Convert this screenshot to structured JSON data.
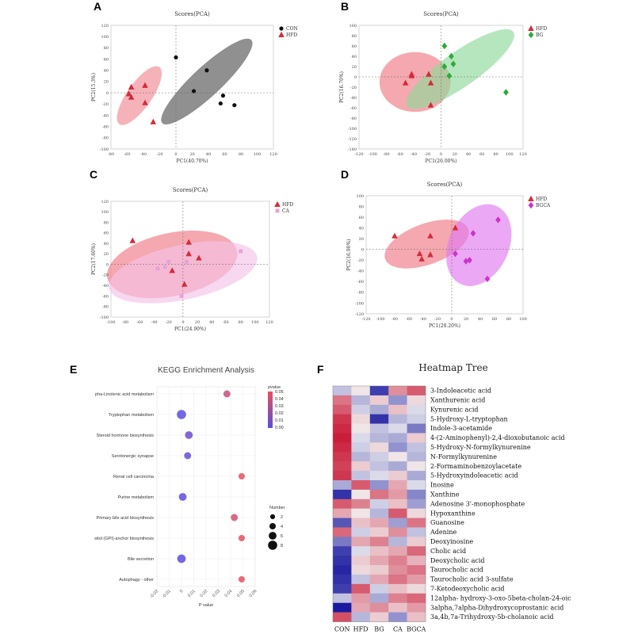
{
  "panels": {
    "A": "A",
    "B": "B",
    "C": "C",
    "D": "D",
    "E": "E",
    "F": "F"
  },
  "chart_data": [
    {
      "id": "A",
      "type": "scatter",
      "title": "Scores(PCA)",
      "xlabel": "PC1(40.70%)",
      "ylabel": "PC2(15.3%)",
      "xlim": [
        -80,
        120
      ],
      "ylim": [
        -100,
        120
      ],
      "xticks": [
        -80,
        -60,
        -40,
        -20,
        0,
        20,
        40,
        60,
        80,
        100,
        120
      ],
      "yticks": [
        -100,
        -80,
        -60,
        -40,
        -20,
        0,
        20,
        40,
        60,
        80,
        100,
        120
      ],
      "legend_position": "top-right",
      "series": [
        {
          "name": "CON",
          "marker": "circle",
          "color": "#111111",
          "ellipse_color": "#555555",
          "points": [
            [
              0,
              63
            ],
            [
              38,
              40
            ],
            [
              22,
              3
            ],
            [
              58,
              -5
            ],
            [
              55,
              -19
            ],
            [
              72,
              -22
            ]
          ],
          "ellipse": {
            "cx": 38,
            "cy": 20,
            "rx": 75,
            "ry": 26,
            "angle_deg": -43
          }
        },
        {
          "name": "HFD",
          "marker": "triangle",
          "color": "#d42b3a",
          "ellipse_color": "#f08a93",
          "points": [
            [
              -55,
              10
            ],
            [
              -38,
              13
            ],
            [
              -58,
              -2
            ],
            [
              -55,
              -8
            ],
            [
              -38,
              -18
            ],
            [
              -28,
              -52
            ]
          ],
          "ellipse": {
            "cx": -45,
            "cy": -5,
            "rx": 43,
            "ry": 22,
            "angle_deg": -55
          }
        }
      ]
    },
    {
      "id": "B",
      "type": "scatter",
      "title": "Scores(PCA)",
      "xlabel": "PC1(26.00%)",
      "ylabel": "PC2(16.70%)",
      "xlim": [
        -120,
        120
      ],
      "ylim": [
        -140,
        100
      ],
      "xticks": [
        -120,
        -100,
        -80,
        -60,
        -40,
        -20,
        0,
        20,
        40,
        60,
        80,
        100,
        120
      ],
      "yticks": [
        -140,
        -120,
        -100,
        -80,
        -60,
        -40,
        -20,
        0,
        20,
        40,
        60,
        80,
        100
      ],
      "legend_position": "top-right",
      "series": [
        {
          "name": "HFD",
          "marker": "triangle",
          "color": "#d42b3a",
          "ellipse_color": "#f07a85",
          "points": [
            [
              -43,
              5
            ],
            [
              -18,
              5
            ],
            [
              -52,
              -12
            ],
            [
              -15,
              -12
            ],
            [
              -43,
              2
            ],
            [
              -15,
              -55
            ]
          ],
          "ellipse": {
            "cx": -38,
            "cy": -10,
            "rx": 52,
            "ry": 58,
            "angle_deg": 0
          }
        },
        {
          "name": "BG",
          "marker": "diamond",
          "color": "#2eaa3c",
          "ellipse_color": "#8fd99a",
          "points": [
            [
              5,
              60
            ],
            [
              15,
              40
            ],
            [
              5,
              20
            ],
            [
              18,
              25
            ],
            [
              12,
              2
            ],
            [
              95,
              -30
            ]
          ],
          "ellipse": {
            "cx": 28,
            "cy": 15,
            "rx": 95,
            "ry": 34,
            "angle_deg": -35
          }
        }
      ]
    },
    {
      "id": "C",
      "type": "scatter",
      "title": "Scores(PCA)",
      "xlabel": "PC1(24.90%)",
      "ylabel": "PC2(17.60%)",
      "xlim": [
        -100,
        120
      ],
      "ylim": [
        -100,
        120
      ],
      "xticks": [
        -100,
        -80,
        -60,
        -40,
        -20,
        0,
        20,
        40,
        60,
        80,
        100,
        120
      ],
      "yticks": [
        -100,
        -80,
        -60,
        -40,
        -20,
        0,
        20,
        40,
        60,
        80,
        100,
        120
      ],
      "legend_position": "top-right",
      "series": [
        {
          "name": "HFD",
          "marker": "triangle",
          "color": "#d42b3a",
          "ellipse_color": "#f07a85",
          "points": [
            [
              -70,
              45
            ],
            [
              8,
              42
            ],
            [
              22,
              12
            ],
            [
              8,
              20
            ],
            [
              -15,
              -12
            ],
            [
              2,
              -38
            ]
          ],
          "ellipse": {
            "cx": -15,
            "cy": 0,
            "rx": 92,
            "ry": 60,
            "angle_deg": -12
          }
        },
        {
          "name": "CA",
          "marker": "square",
          "color": "#e8a0d8",
          "ellipse_color": "#f5c2e8",
          "points": [
            [
              -20,
              5
            ],
            [
              -25,
              -5
            ],
            [
              80,
              25
            ],
            [
              -2,
              -60
            ],
            [
              5,
              5
            ],
            [
              -35,
              -8
            ]
          ],
          "ellipse": {
            "cx": 0,
            "cy": -15,
            "rx": 105,
            "ry": 52,
            "angle_deg": -12
          }
        }
      ]
    },
    {
      "id": "D",
      "type": "scatter",
      "title": "Scores(PCA)",
      "xlabel": "PC1(28.20%)",
      "ylabel": "PC2(16.90%)",
      "xlim": [
        -120,
        100
      ],
      "ylim": [
        -120,
        100
      ],
      "xticks": [
        -120,
        -100,
        -80,
        -60,
        -40,
        -20,
        0,
        20,
        40,
        60,
        80,
        100
      ],
      "yticks": [
        -120,
        -100,
        -80,
        -60,
        -40,
        -20,
        0,
        20,
        40,
        60,
        80,
        100
      ],
      "legend_position": "top-right",
      "series": [
        {
          "name": "HFD",
          "marker": "triangle",
          "color": "#d42b3a",
          "ellipse_color": "#f07a85",
          "points": [
            [
              -80,
              25
            ],
            [
              -30,
              25
            ],
            [
              -45,
              -8
            ],
            [
              -42,
              -18
            ],
            [
              -30,
              -10
            ],
            [
              5,
              40
            ]
          ],
          "ellipse": {
            "cx": -35,
            "cy": 10,
            "rx": 62,
            "ry": 38,
            "angle_deg": -20
          }
        },
        {
          "name": "BGCA",
          "marker": "diamond",
          "color": "#cc33cc",
          "ellipse_color": "#e07af0",
          "points": [
            [
              30,
              30
            ],
            [
              65,
              55
            ],
            [
              5,
              -8
            ],
            [
              25,
              -20
            ],
            [
              20,
              -22
            ],
            [
              50,
              -55
            ]
          ],
          "ellipse": {
            "cx": 38,
            "cy": 8,
            "rx": 42,
            "ry": 80,
            "angle_deg": 25
          }
        }
      ]
    },
    {
      "id": "E",
      "type": "scatter",
      "title": "KEGG Enrichment Analysis",
      "xlabel": "P value",
      "ylabel": "",
      "xlim": [
        -0.02,
        0.06
      ],
      "xticks": [
        -0.02,
        -0.01,
        0,
        0.01,
        0.02,
        0.03,
        0.04,
        0.05,
        0.06
      ],
      "categories": [
        "pha-Linolenic acid metabolism",
        "Tryptophan metabolism",
        "Steroid hormone biosynthesis",
        "Serotonergic synapse",
        "Renal cell carcinoma",
        "Purine metabolism",
        "Primary bile acid biosynthesis",
        "sitol (GPI)-anchor biosynthesis",
        "Bile secretion",
        "Autophagy - other"
      ],
      "values": [
        0.037,
        0.0,
        0.006,
        0.005,
        0.049,
        0.001,
        0.043,
        0.049,
        0.0,
        0.049
      ],
      "number": [
        5,
        8,
        6,
        5,
        4,
        6,
        5,
        4,
        7,
        4
      ],
      "color_legend": {
        "title": "pvalue",
        "ticks": [
          "0.05",
          "0.04",
          "0.03",
          "0.02",
          "0.01",
          "0.00"
        ],
        "low": "#5b4ce0",
        "high": "#e8505b"
      },
      "size_legend": {
        "title": "Number",
        "values": [
          2,
          4,
          6,
          8
        ]
      }
    },
    {
      "id": "F",
      "type": "heatmap",
      "title": "Heatmap Tree",
      "columns": [
        "CON",
        "HFD",
        "BG",
        "CA",
        "BGCA"
      ],
      "rows": [
        "3-Indoleacetic acid",
        "Xanthurenic acid",
        "Kynurenic acid",
        "5-Hydroxy-L-tryptophan",
        "Indole-3-acetamide",
        "4-(2-Aminophenyl)-2,4-dioxobutanoic acid",
        "5-Hydroxy-N-formylkynurenine",
        "N-Formylkynurenine",
        "2-Formaminobenzoylacetate",
        "5-Hydroxyindoleacetic acid",
        "Inosine",
        "Xanthine",
        "Adenosine 3'-monophosphate",
        "Hypoxanthine",
        "Guanosine",
        "Adenine",
        "Deoxyinosine",
        "Cholic acid",
        "Deoxycholic acid",
        "Taurocholic acid",
        "Taurocholic acid 3-sulfate",
        "7-Ketodeoxycholic acid",
        "12alpha- hydroxy-3-oxo-5beta-cholan-24-oic",
        "3alpha,7alpha-Dihydroxycoprostanic acid",
        "3a,4b,7a-Trihydroxy-5b-cholanoic acid"
      ],
      "values": [
        [
          -0.4,
          0.1,
          -1.5,
          0.8,
          1.2
        ],
        [
          1.0,
          -0.5,
          0.3,
          -0.8,
          0.2
        ],
        [
          1.2,
          -0.3,
          -0.6,
          0.4,
          -0.2
        ],
        [
          1.5,
          0.2,
          -1.6,
          -0.5,
          -0.3
        ],
        [
          1.6,
          0.1,
          -0.4,
          -0.2,
          -1.0
        ],
        [
          1.7,
          -0.2,
          -0.5,
          -0.6,
          0.3
        ],
        [
          1.6,
          -0.3,
          0.2,
          -0.8,
          -0.4
        ],
        [
          1.5,
          -0.5,
          -0.3,
          0.1,
          -0.5
        ],
        [
          1.4,
          0.3,
          -0.4,
          -0.6,
          0.1
        ],
        [
          1.5,
          -0.4,
          -0.2,
          0.3,
          -0.6
        ],
        [
          -0.6,
          1.2,
          -0.8,
          0.6,
          -0.2
        ],
        [
          -1.6,
          0.1,
          1.0,
          0.7,
          -0.9
        ],
        [
          1.2,
          0.9,
          -0.3,
          0.4,
          -0.7
        ],
        [
          0.6,
          0.1,
          -0.5,
          1.2,
          0.2
        ],
        [
          -1.3,
          0.4,
          0.6,
          -0.7,
          1.0
        ],
        [
          1.1,
          -0.3,
          0.3,
          0.8,
          -0.4
        ],
        [
          -1.0,
          0.6,
          0.9,
          -0.5,
          0.3
        ],
        [
          -1.5,
          -0.2,
          0.4,
          0.6,
          1.1
        ],
        [
          -1.6,
          0.3,
          0.6,
          0.9,
          0.5
        ],
        [
          -1.7,
          0.2,
          0.3,
          0.8,
          1.0
        ],
        [
          -1.6,
          -0.4,
          0.6,
          1.0,
          0.7
        ],
        [
          -1.5,
          1.2,
          -0.3,
          0.4,
          0.2
        ],
        [
          -0.4,
          0.7,
          -0.6,
          0.9,
          1.1
        ],
        [
          -1.8,
          0.6,
          0.8,
          0.4,
          0.7
        ],
        [
          1.3,
          -0.5,
          0.3,
          -0.8,
          0.4
        ]
      ],
      "color_scale": {
        "low": "#1a1aa0",
        "mid": "#f2f2f2",
        "high": "#c8102e"
      }
    }
  ]
}
